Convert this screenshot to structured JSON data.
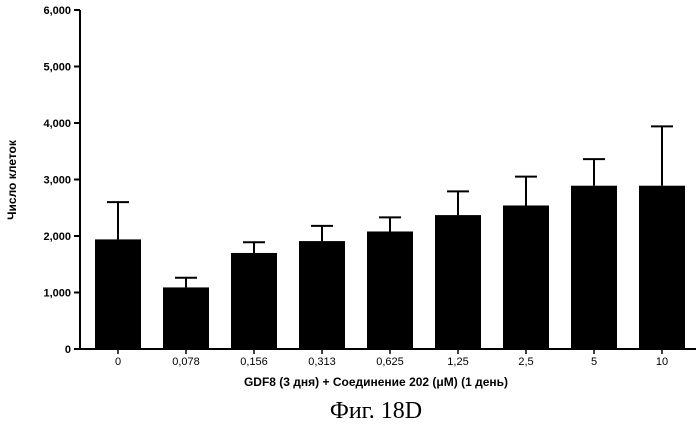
{
  "chart_data": {
    "type": "bar",
    "title": "",
    "xlabel": "GDF8 (3 дня)  + Соединение 202 (μM) (1 день)",
    "ylabel": "Число клеток",
    "categories": [
      "0",
      "0,078",
      "0,156",
      "0,313",
      "0,625",
      "1,25",
      "2,5",
      "5",
      "10"
    ],
    "values": [
      1940,
      1090,
      1700,
      1910,
      2080,
      2370,
      2540,
      2890,
      2890
    ],
    "error_upper": [
      2600,
      1260,
      1890,
      2180,
      2330,
      2790,
      3050,
      3360,
      3940
    ],
    "ylim": [
      0,
      6000
    ],
    "yticks": [
      0,
      1000,
      2000,
      3000,
      4000,
      5000,
      6000
    ],
    "ytick_labels": [
      "0",
      "1,000",
      "2,000",
      "3,000",
      "4,000",
      "5,000",
      "6,000"
    ],
    "bar_color": "#000000",
    "grid": false,
    "legend": "none"
  },
  "caption": "Фиг. 18D"
}
